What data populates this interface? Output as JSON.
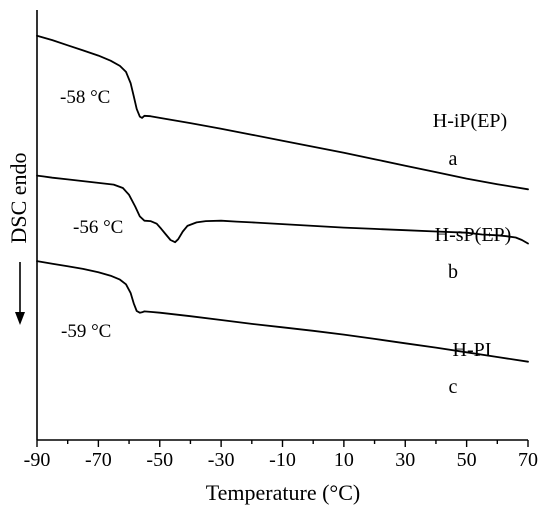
{
  "chart_data": {
    "type": "line",
    "title": "",
    "xlabel": "Temperature (°C)",
    "ylabel": "DSC endo",
    "ylabel_arrow": "down",
    "xlim": [
      -90,
      70
    ],
    "xticks": [
      -90,
      -70,
      -50,
      -30,
      -10,
      10,
      30,
      50,
      70
    ],
    "x_tick_labels": [
      "-90",
      "-70",
      "-50",
      "-30",
      "-10",
      "10",
      "30",
      "50",
      "70"
    ],
    "y_scale": "arbitrary units (curves vertically offset)",
    "ylim": [
      0,
      100
    ],
    "grid": false,
    "series": [
      {
        "name": "H-iP(EP)",
        "letter": "a",
        "tg_label": "-58 °C",
        "x": [
          -90,
          -85,
          -80,
          -75,
          -70,
          -66,
          -63,
          -61,
          -59.5,
          -58.5,
          -57.5,
          -56.5,
          -55.8,
          -55,
          -53,
          -50,
          -40,
          -30,
          -20,
          -10,
          0,
          10,
          20,
          30,
          40,
          50,
          60,
          70
        ],
        "y": [
          94.0,
          93.0,
          91.8,
          90.6,
          89.4,
          88.2,
          87.0,
          85.6,
          83.0,
          80.0,
          77.0,
          75.2,
          74.9,
          75.4,
          75.3,
          74.9,
          73.7,
          72.4,
          71.0,
          69.6,
          68.2,
          66.8,
          65.3,
          63.8,
          62.3,
          60.8,
          59.5,
          58.3
        ]
      },
      {
        "name": "H-sP(EP)",
        "letter": "b",
        "tg_label": "-56 °C",
        "x": [
          -90,
          -88,
          -85,
          -80,
          -75,
          -70,
          -65,
          -62,
          -60,
          -58,
          -56.5,
          -55,
          -53,
          -51,
          -49.5,
          -48,
          -46.5,
          -45,
          -44,
          -42.5,
          -41,
          -38,
          -35,
          -30,
          -25,
          -20,
          -10,
          0,
          10,
          20,
          30,
          40,
          50,
          55,
          60,
          63,
          66,
          68,
          70
        ],
        "y": [
          61.5,
          61.3,
          61.0,
          60.6,
          60.2,
          59.8,
          59.4,
          58.6,
          57.0,
          54.3,
          52.0,
          51.0,
          50.9,
          50.3,
          49.1,
          47.8,
          46.5,
          46.0,
          46.7,
          48.5,
          49.8,
          50.6,
          50.9,
          51.0,
          50.8,
          50.6,
          50.2,
          49.8,
          49.4,
          49.1,
          48.8,
          48.5,
          48.2,
          47.8,
          47.6,
          47.4,
          47.1,
          46.5,
          45.7
        ]
      },
      {
        "name": "H-PI",
        "letter": "c",
        "tg_label": "-59 °C",
        "x": [
          -90,
          -85,
          -80,
          -75,
          -70,
          -66,
          -63,
          -61,
          -59.5,
          -58.5,
          -57.5,
          -56.5,
          -55.8,
          -55,
          -53,
          -50,
          -40,
          -30,
          -20,
          -10,
          0,
          10,
          20,
          30,
          40,
          50,
          60,
          70
        ],
        "y": [
          41.6,
          41.0,
          40.4,
          39.8,
          39.0,
          38.2,
          37.3,
          36.2,
          34.2,
          31.8,
          30.0,
          29.6,
          29.7,
          29.9,
          29.8,
          29.6,
          28.8,
          27.9,
          27.0,
          26.2,
          25.4,
          24.5,
          23.5,
          22.5,
          21.5,
          20.4,
          19.3,
          18.2
        ]
      }
    ]
  }
}
